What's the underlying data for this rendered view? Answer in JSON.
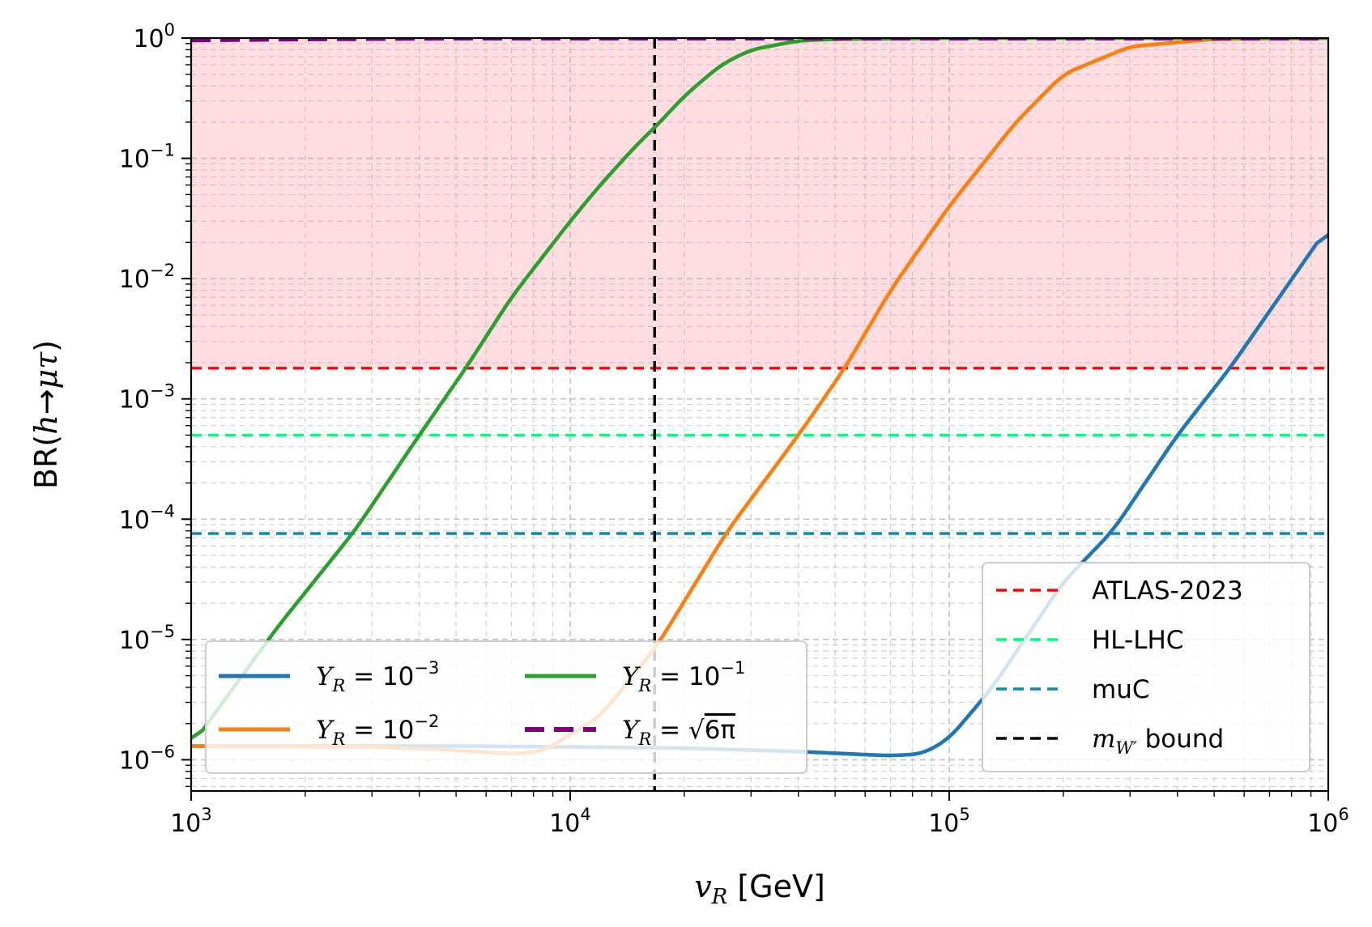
{
  "chart_data": {
    "type": "line",
    "xscale": "log",
    "yscale": "log",
    "xlim": [
      1000,
      1000000
    ],
    "ylim": [
      5.5e-07,
      1.0
    ],
    "x_ticks": [
      {
        "value": 1000,
        "base": "10",
        "exp": "3"
      },
      {
        "value": 10000,
        "base": "10",
        "exp": "4"
      },
      {
        "value": 100000,
        "base": "10",
        "exp": "5"
      },
      {
        "value": 1000000,
        "base": "10",
        "exp": "6"
      }
    ],
    "y_ticks": [
      {
        "value": 1e-06,
        "base": "10",
        "exp": "−6"
      },
      {
        "value": 1e-05,
        "base": "10",
        "exp": "−5"
      },
      {
        "value": 0.0001,
        "base": "10",
        "exp": "−4"
      },
      {
        "value": 0.001,
        "base": "10",
        "exp": "−3"
      },
      {
        "value": 0.01,
        "base": "10",
        "exp": "−2"
      },
      {
        "value": 0.1,
        "base": "10",
        "exp": "−1"
      },
      {
        "value": 1,
        "base": "10",
        "exp": "0"
      }
    ],
    "xlabel": {
      "var": "v",
      "sub": "R",
      "unit": " [GeV]"
    },
    "ylabel": {
      "prefix": "BR(",
      "h": "h",
      "arrow": "→",
      "mutau": "μτ",
      "suffix": ")"
    },
    "grid": true,
    "excluded_region": {
      "from": 0.0018,
      "to": 1.0,
      "color": "#ffdde0"
    },
    "series": [
      {
        "name_var": "Y",
        "name_sub": "R",
        "name_rest": " = 10",
        "name_exp": "−3",
        "color": "#1f77b4",
        "style": "solid",
        "x": [
          1000,
          5000,
          10000,
          20000,
          40000,
          70000,
          85000,
          100000,
          130000,
          200000,
          270000,
          400000,
          550000,
          1000000
        ],
        "y": [
          1.3e-06,
          1.3e-06,
          1.28e-06,
          1.25e-06,
          1.17e-06,
          1.08e-06,
          1.12e-06,
          1.5e-06,
          4e-06,
          3e-05,
          8e-05,
          0.0005,
          0.0018,
          0.027
        ]
      },
      {
        "name_var": "Y",
        "name_sub": "R",
        "name_rest": " = 10",
        "name_exp": "−2",
        "color": "#ff7f0e",
        "style": "solid",
        "x": [
          1000,
          3000,
          5000,
          7000,
          8500,
          12000,
          17000,
          26000,
          40000,
          53000,
          70000,
          100000,
          150000,
          200000,
          300000,
          500000,
          1000000
        ],
        "y": [
          1.3e-06,
          1.28e-06,
          1.2e-06,
          1.12e-06,
          1.18e-06,
          2.3e-06,
          9e-06,
          8e-05,
          0.0005,
          0.0018,
          0.008,
          0.04,
          0.2,
          0.5,
          0.85,
          0.98,
          1.0
        ]
      },
      {
        "name_var": "Y",
        "name_sub": "R",
        "name_rest": " = 10",
        "name_exp": "−1",
        "color": "#2ca02c",
        "style": "solid",
        "x": [
          1000,
          1700,
          2700,
          4000,
          5300,
          7000,
          10000,
          12000,
          15000,
          17000,
          20000,
          25000,
          30000,
          40000,
          50000,
          100000,
          1000000
        ],
        "y": [
          1.3e-06,
          1.3e-05,
          8e-05,
          0.0005,
          0.0018,
          0.007,
          0.03,
          0.06,
          0.13,
          0.19,
          0.33,
          0.6,
          0.8,
          0.95,
          0.98,
          1.0,
          1.0
        ]
      },
      {
        "name_var": "Y",
        "name_sub": "R",
        "name_rest": " = ",
        "name_sqrt": "6π",
        "color": "#800080",
        "style": "dashed",
        "x": [
          1000,
          2000,
          5000,
          1000000
        ],
        "y": [
          0.965,
          0.985,
          1.0,
          1.0
        ]
      }
    ],
    "bounds": [
      {
        "name": "ATLAS-2023",
        "axis": "y",
        "value": 0.0018,
        "color": "#ff0000"
      },
      {
        "name": "HL-LHC",
        "axis": "y",
        "value": 0.0005,
        "color": "#00ff7f"
      },
      {
        "name": "muC",
        "axis": "y",
        "value": 7.6e-05,
        "color": "#008fbf"
      },
      {
        "name_var": "m",
        "name_sub": "W′",
        "name_rest": " bound",
        "axis": "x",
        "value": 16700,
        "color": "#000000"
      }
    ],
    "legend_left_placement": "lower-left",
    "legend_right_placement": "lower-right"
  }
}
